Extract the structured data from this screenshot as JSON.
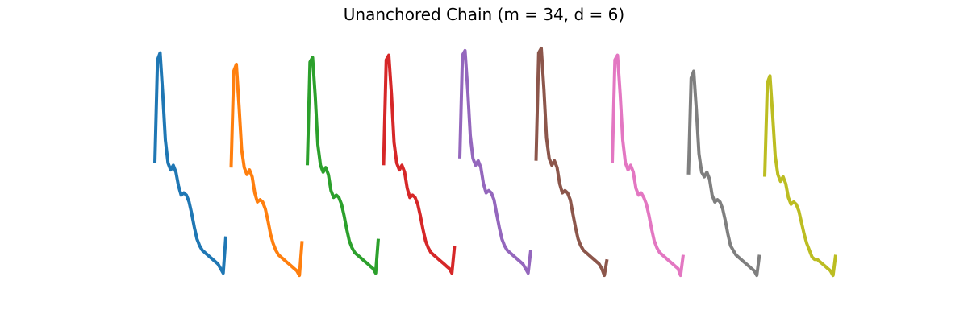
{
  "chart_data": {
    "type": "line",
    "title": "Unanchored Chain (m = 34, d = 6)",
    "axes": "off",
    "grid": false,
    "legend": "none",
    "xlabel": "",
    "ylabel": "",
    "series": [
      {
        "color": "#1f77b4",
        "values": [
          0.5,
          0.95,
          0.98,
          0.8,
          0.6,
          0.5,
          0.47,
          0.49,
          0.46,
          0.4,
          0.36,
          0.37,
          0.36,
          0.33,
          0.28,
          0.22,
          0.17,
          0.14,
          0.12,
          0.11,
          0.1,
          0.09,
          0.08,
          0.07,
          0.06,
          0.04,
          0.02,
          0.18
        ]
      },
      {
        "color": "#ff7f0e",
        "values": [
          0.48,
          0.9,
          0.93,
          0.75,
          0.56,
          0.48,
          0.45,
          0.47,
          0.44,
          0.37,
          0.33,
          0.34,
          0.33,
          0.3,
          0.25,
          0.19,
          0.15,
          0.12,
          0.1,
          0.09,
          0.08,
          0.07,
          0.06,
          0.05,
          0.04,
          0.03,
          0.01,
          0.16
        ]
      },
      {
        "color": "#2ca02c",
        "values": [
          0.49,
          0.94,
          0.96,
          0.79,
          0.58,
          0.49,
          0.46,
          0.48,
          0.45,
          0.38,
          0.35,
          0.36,
          0.35,
          0.32,
          0.27,
          0.21,
          0.16,
          0.13,
          0.11,
          0.1,
          0.09,
          0.08,
          0.07,
          0.06,
          0.05,
          0.04,
          0.02,
          0.17
        ]
      },
      {
        "color": "#d62728",
        "values": [
          0.49,
          0.95,
          0.97,
          0.8,
          0.59,
          0.5,
          0.47,
          0.49,
          0.46,
          0.39,
          0.35,
          0.36,
          0.35,
          0.32,
          0.27,
          0.21,
          0.16,
          0.13,
          0.11,
          0.1,
          0.09,
          0.08,
          0.07,
          0.06,
          0.05,
          0.04,
          0.02,
          0.14
        ]
      },
      {
        "color": "#9467bd",
        "values": [
          0.52,
          0.97,
          0.99,
          0.82,
          0.62,
          0.52,
          0.49,
          0.51,
          0.48,
          0.41,
          0.37,
          0.38,
          0.37,
          0.34,
          0.28,
          0.22,
          0.17,
          0.14,
          0.12,
          0.11,
          0.1,
          0.09,
          0.08,
          0.07,
          0.06,
          0.04,
          0.02,
          0.12
        ]
      },
      {
        "color": "#8c564b",
        "values": [
          0.51,
          0.98,
          1.0,
          0.82,
          0.61,
          0.52,
          0.49,
          0.51,
          0.48,
          0.41,
          0.37,
          0.38,
          0.37,
          0.34,
          0.28,
          0.22,
          0.17,
          0.14,
          0.12,
          0.11,
          0.1,
          0.09,
          0.08,
          0.07,
          0.06,
          0.04,
          0.01,
          0.08
        ]
      },
      {
        "color": "#e377c2",
        "values": [
          0.5,
          0.95,
          0.97,
          0.8,
          0.6,
          0.5,
          0.47,
          0.49,
          0.46,
          0.39,
          0.36,
          0.37,
          0.35,
          0.32,
          0.27,
          0.21,
          0.16,
          0.13,
          0.11,
          0.1,
          0.09,
          0.08,
          0.07,
          0.06,
          0.05,
          0.04,
          0.01,
          0.1
        ]
      },
      {
        "color": "#7f7f7f",
        "values": [
          0.45,
          0.87,
          0.9,
          0.73,
          0.54,
          0.46,
          0.44,
          0.46,
          0.43,
          0.36,
          0.33,
          0.34,
          0.33,
          0.3,
          0.25,
          0.19,
          0.14,
          0.12,
          0.1,
          0.09,
          0.08,
          0.07,
          0.06,
          0.05,
          0.04,
          0.03,
          0.01,
          0.1
        ]
      },
      {
        "color": "#bcbd22",
        "values": [
          0.44,
          0.85,
          0.88,
          0.71,
          0.53,
          0.45,
          0.42,
          0.44,
          0.41,
          0.35,
          0.32,
          0.33,
          0.32,
          0.29,
          0.24,
          0.19,
          0.15,
          0.12,
          0.09,
          0.08,
          0.08,
          0.07,
          0.06,
          0.05,
          0.04,
          0.03,
          0.01,
          0.1
        ]
      }
    ]
  }
}
